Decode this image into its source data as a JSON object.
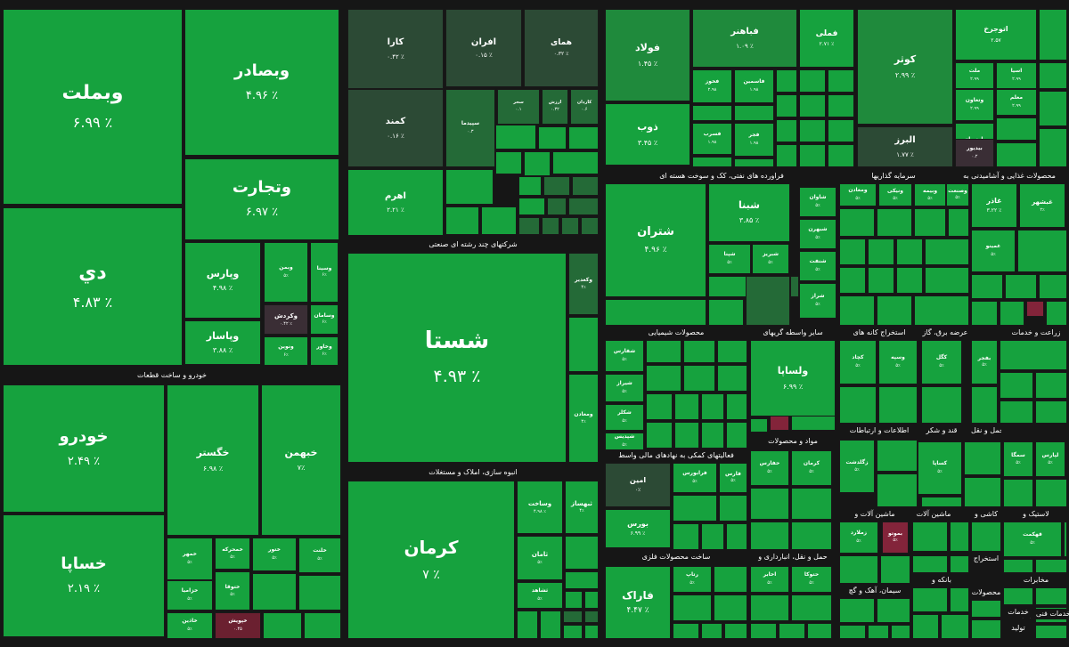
{
  "colors": {
    "gain_high": "#16a23e",
    "gain_mid": "#1f8a3c",
    "gain_low": "#246a37",
    "gain_dark": "#2c4a35",
    "neutral": "#3a2e35",
    "loss": "#6b2030",
    "loss_mid": "#83243a",
    "border": "#181818"
  },
  "sectors": [
    {
      "label": "شرکتهای چند رشته ای صنعتی"
    },
    {
      "label": "خودرو و ساخت قطعات"
    },
    {
      "label": "انبوه سازی، املاک و مستغلات"
    },
    {
      "label": "فراورده های نفتی، کک و سوخت هسته ای"
    },
    {
      "label": "سرمایه گذاریها"
    },
    {
      "label": "محصولات غذایی و آشامیدنی به"
    },
    {
      "label": "محصولات شیمیایی"
    },
    {
      "label": "سایر واسطه گریهای"
    },
    {
      "label": "استخراج کانه های"
    },
    {
      "label": "عرضه برق، گاز"
    },
    {
      "label": "زراعت و خدمات"
    },
    {
      "label": "مواد و محصولات"
    },
    {
      "label": "اطلاعات و ارتباطات"
    },
    {
      "label": "قند و شکر"
    },
    {
      "label": "حمل و نقل"
    },
    {
      "label": "فعالیتهای کمکی به نهادهای مالی واسط"
    },
    {
      "label": "ماشین آلات و"
    },
    {
      "label": "ماشین آلات"
    },
    {
      "label": "کاشی و"
    },
    {
      "label": "لاستیک و"
    },
    {
      "label": "ساخت محصولات فلزی"
    },
    {
      "label": "حمل و نقل، انبارداری و"
    },
    {
      "label": "سیمان، آهک و گچ"
    },
    {
      "label": "بانکه و"
    },
    {
      "label": "محصولات"
    },
    {
      "label": "مخابرات"
    },
    {
      "label": "استخراج"
    },
    {
      "label": "خدمات فنی و مهندسی"
    },
    {
      "label": "خدمات"
    },
    {
      "label": "تولید"
    }
  ],
  "tiles": [
    {
      "name": "وبملت",
      "change": "۶.۹۹ ٪"
    },
    {
      "name": "وبصادر",
      "change": "۴.۹۶ ٪"
    },
    {
      "name": "وتجارت",
      "change": "۶.۹۷ ٪"
    },
    {
      "name": "دي",
      "change": "۴.۸۳ ٪"
    },
    {
      "name": "وپارس",
      "change": "۴.۹۸ ٪"
    },
    {
      "name": "وپاسار",
      "change": "۳.۸۸ ٪"
    },
    {
      "name": "وکردش",
      "change": "۰.۴۲ ٪"
    },
    {
      "name": "وبمن",
      "change": "۵٪"
    },
    {
      "name": "وسینا",
      "change": "۶٪"
    },
    {
      "name": "ونوین",
      "change": "۶٪"
    },
    {
      "name": "وسامان",
      "change": "۶٪"
    },
    {
      "name": "وخاور",
      "change": "۶٪"
    },
    {
      "name": "کارا",
      "change": "۰.۴۲ ٪"
    },
    {
      "name": "افران",
      "change": "۰.۱۵ ٪"
    },
    {
      "name": "همای",
      "change": "۰.۳۲ ٪"
    },
    {
      "name": "کمند",
      "change": "۰.۱۶ ٪"
    },
    {
      "name": "اهرم",
      "change": "۲.۲۱ ٪"
    },
    {
      "name": "سپیدما",
      "change": "۰.۳"
    },
    {
      "name": "ارزش",
      "change": "۰.۳۲"
    },
    {
      "name": "سحر",
      "change": "۰.۱"
    },
    {
      "name": "کاردان",
      "change": "۰.۶"
    },
    {
      "name": "شستا",
      "change": "۴.۹۳ ٪"
    },
    {
      "name": "وکغدیر",
      "change": "۴٪"
    },
    {
      "name": "ومعادن",
      "change": "۴٪"
    },
    {
      "name": "خودرو",
      "change": "۲.۴۹ ٪"
    },
    {
      "name": "خساپا",
      "change": "۲.۱۹ ٪"
    },
    {
      "name": "خگستر",
      "change": "۶.۹۸ ٪"
    },
    {
      "name": "خبهمن",
      "change": "۷٪"
    },
    {
      "name": "خمهر",
      "change": "۵٪"
    },
    {
      "name": "خزامیا",
      "change": "۵٪"
    },
    {
      "name": "ختوقا",
      "change": "۵٪"
    },
    {
      "name": "خمحرکه",
      "change": "۵٪"
    },
    {
      "name": "ختور",
      "change": "۵٪"
    },
    {
      "name": "خلنت",
      "change": "۵٪"
    },
    {
      "name": "خاذین",
      "change": "۵٪"
    },
    {
      "name": "خپویش",
      "change": "۰.۴۵"
    },
    {
      "name": "کرمان",
      "change": "۷ ٪"
    },
    {
      "name": "وساخت",
      "change": "۴.۹۸ ٪"
    },
    {
      "name": "ثبهساز",
      "change": "۴٪"
    },
    {
      "name": "ثامان",
      "change": "۵٪"
    },
    {
      "name": "ثشاهد",
      "change": "۵٪"
    },
    {
      "name": "فولاد",
      "change": "۱.۴۵ ٪"
    },
    {
      "name": "ذوب",
      "change": "۳.۴۵ ٪"
    },
    {
      "name": "فملی",
      "change": "۲.۷۱ ٪"
    },
    {
      "name": "فباهنر",
      "change": "۱.۰۹ ٪"
    },
    {
      "name": "فخوز",
      "change": "۲.۹۸"
    },
    {
      "name": "فسرب",
      "change": "۱.۹۸"
    },
    {
      "name": "فجر",
      "change": "۱.۹۸"
    },
    {
      "name": "فاسمین",
      "change": "۱.۹۸"
    },
    {
      "name": "کوثر",
      "change": "۲.۹۹ ٪"
    },
    {
      "name": "البرز",
      "change": "۱.۷۷ ٪"
    },
    {
      "name": "اتوجرخ",
      "change": "۲.۵۷"
    },
    {
      "name": "اسیا",
      "change": "۲.۹۹"
    },
    {
      "name": "ملت",
      "change": "۲.۹۹"
    },
    {
      "name": "وتعاون",
      "change": "۲.۹۹"
    },
    {
      "name": "پارسیان",
      "change": "۲.۹۹"
    },
    {
      "name": "معلم",
      "change": "۲.۹۹"
    },
    {
      "name": "بیدیور",
      "change": "۰.۲"
    },
    {
      "name": "شتران",
      "change": "۴.۹۶ ٪"
    },
    {
      "name": "شبنا",
      "change": "۳.۸۵ ٪"
    },
    {
      "name": "شبریز",
      "change": "۵٪"
    },
    {
      "name": "شپنا",
      "change": "۵٪"
    },
    {
      "name": "شاوان",
      "change": "۵٪"
    },
    {
      "name": "شبهرن",
      "change": "۵٪"
    },
    {
      "name": "شنفت",
      "change": "۵٪"
    },
    {
      "name": "شراز",
      "change": "۵٪"
    },
    {
      "name": "ونیکی",
      "change": "۵٪"
    },
    {
      "name": "وبیمه",
      "change": "۵٪"
    },
    {
      "name": "ومعادن",
      "change": "۵٪"
    },
    {
      "name": "وصنعت",
      "change": "۵٪"
    },
    {
      "name": "غاذر",
      "change": "۳.۲۲ ٪"
    },
    {
      "name": "غبشهر",
      "change": "۲٪"
    },
    {
      "name": "غمینو",
      "change": "۵٪"
    },
    {
      "name": "شفارس",
      "change": "۵٪"
    },
    {
      "name": "شیراز",
      "change": "۵٪"
    },
    {
      "name": "شکلر",
      "change": "۵٪"
    },
    {
      "name": "شپدیس",
      "change": "۵٪"
    },
    {
      "name": "ولساپا",
      "change": "۶.۹۹ ٪"
    },
    {
      "name": "وسپه",
      "change": "۵٪"
    },
    {
      "name": "کچاد",
      "change": "۵٪"
    },
    {
      "name": "کگل",
      "change": "۵٪"
    },
    {
      "name": "بفجر",
      "change": "۵٪"
    },
    {
      "name": "بموتو",
      "change": "۵٪"
    },
    {
      "name": "زگلدشت",
      "change": "۵٪"
    },
    {
      "name": "زملارد",
      "change": "۵٪"
    },
    {
      "name": "امین",
      "change": "۰٪"
    },
    {
      "name": "بورس",
      "change": "۶.۹۹ ٪"
    },
    {
      "name": "فرابورس",
      "change": "۵٪"
    },
    {
      "name": "فارس",
      "change": "۵٪"
    },
    {
      "name": "فاراک",
      "change": "۴.۴۷ ٪"
    },
    {
      "name": "رتاپ",
      "change": "۵٪"
    },
    {
      "name": "اخابر",
      "change": "۵٪"
    },
    {
      "name": "حتوکا",
      "change": "۵٪"
    },
    {
      "name": "حفارس",
      "change": "۵٪"
    },
    {
      "name": "کرمان",
      "change": "۵٪"
    },
    {
      "name": "سمگا",
      "change": "۵٪"
    },
    {
      "name": "لپارس",
      "change": "۵٪"
    },
    {
      "name": "کساپا",
      "change": "۵٪"
    },
    {
      "name": "قهکمت",
      "change": "۵٪"
    }
  ]
}
